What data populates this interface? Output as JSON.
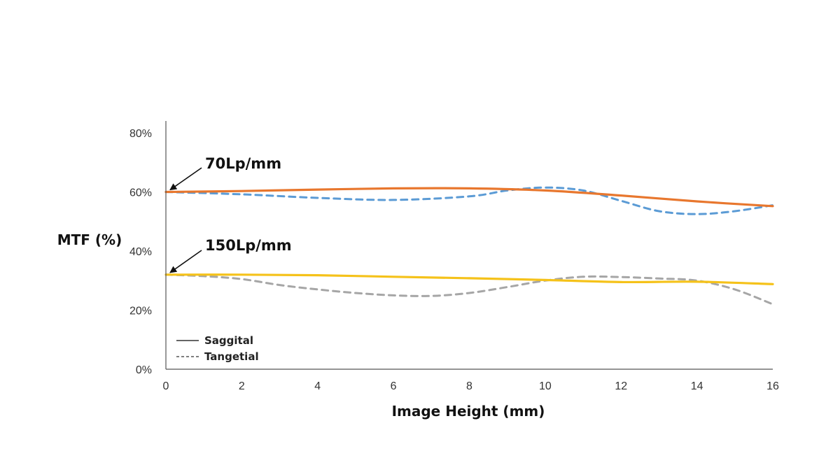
{
  "chart_data": {
    "type": "line",
    "xlabel": "Image Height (mm)",
    "ylabel": "MTF (%)",
    "xlim": [
      0,
      16
    ],
    "ylim": [
      0,
      80
    ],
    "x_ticks": [
      "0",
      "2",
      "4",
      "6",
      "8",
      "10",
      "12",
      "14",
      "16"
    ],
    "y_ticks": [
      "0%",
      "20%",
      "40%",
      "60%",
      "80%"
    ],
    "grid": false,
    "legend": {
      "position": "bottom-left",
      "entries": [
        {
          "label": "Saggital",
          "style": "solid"
        },
        {
          "label": "Tangetial",
          "style": "dashed"
        }
      ]
    },
    "annotations": [
      {
        "text": "70Lp/mm",
        "points_to": [
          0,
          60
        ]
      },
      {
        "text": "150Lp/mm",
        "points_to": [
          0,
          32
        ]
      }
    ],
    "series": [
      {
        "style": "solid",
        "color": "#e8772e",
        "x": [
          0,
          2,
          4,
          6,
          8,
          10,
          12,
          14,
          16
        ],
        "y": [
          60,
          60.3,
          60.8,
          61.2,
          61.2,
          60.5,
          58.8,
          56.8,
          55.2
        ]
      },
      {
        "style": "dashed",
        "color": "#5b9bd5",
        "x": [
          0,
          2,
          4,
          6,
          8,
          9,
          10,
          11,
          12,
          13,
          14,
          15,
          16
        ],
        "y": [
          60,
          59.2,
          58,
          57.3,
          58.5,
          60.5,
          61.5,
          60.5,
          57,
          53.5,
          52.5,
          53.5,
          55.5
        ]
      },
      {
        "style": "solid",
        "color": "#f5c21a",
        "x": [
          0,
          2,
          4,
          6,
          8,
          10,
          12,
          14,
          16
        ],
        "y": [
          32,
          32,
          31.8,
          31.3,
          30.8,
          30.2,
          29.5,
          29.6,
          28.8
        ]
      },
      {
        "style": "dashed",
        "color": "#a6a6a6",
        "x": [
          0,
          1,
          2,
          3,
          4,
          5,
          6,
          7,
          8,
          9,
          10,
          11,
          12,
          13,
          14,
          15,
          16
        ],
        "y": [
          32,
          31.5,
          30.5,
          28.5,
          27,
          25.8,
          25,
          24.8,
          25.8,
          27.8,
          30,
          31.3,
          31.2,
          30.7,
          30,
          27,
          22
        ]
      }
    ]
  }
}
